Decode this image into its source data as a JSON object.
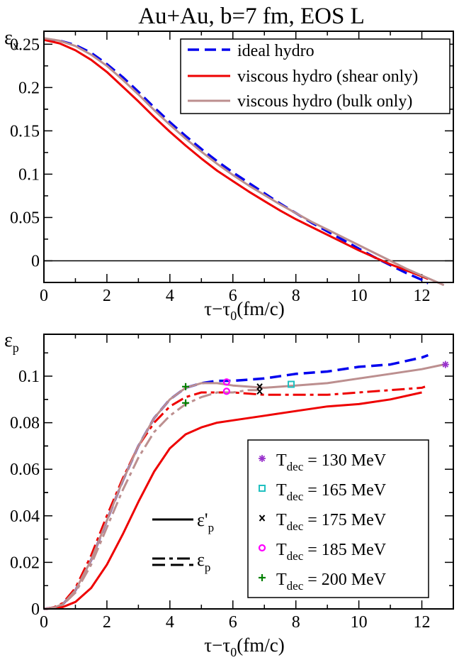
{
  "chart_data": [
    {
      "type": "line",
      "title": "Au+Au, b=7 fm,  EOS L",
      "ylabel_main": "ε",
      "ylabel_sub": "x",
      "xlabel_main": "τ−τ",
      "xlabel_sub": "0",
      "xlabel_unit": "(fm/c)",
      "xlim": [
        0,
        13
      ],
      "ylim": [
        -0.025,
        0.265
      ],
      "xticks": [
        0,
        2,
        4,
        6,
        8,
        10,
        12
      ],
      "yticks": [
        0,
        0.05,
        0.1,
        0.15,
        0.2,
        0.25
      ],
      "ytick_labels": [
        "0",
        "0.05",
        "0.1",
        "0.15",
        "0.2",
        "0.25"
      ],
      "zero_line": true,
      "legend_position": "top-right",
      "series": [
        {
          "name": "ideal hydro",
          "color": "#0000ee",
          "style": "dashed",
          "points": [
            [
              0,
              0.256
            ],
            [
              0.5,
              0.254
            ],
            [
              1,
              0.249
            ],
            [
              1.5,
              0.24
            ],
            [
              2,
              0.227
            ],
            [
              2.5,
              0.212
            ],
            [
              3,
              0.195
            ],
            [
              3.5,
              0.177
            ],
            [
              4,
              0.16
            ],
            [
              4.5,
              0.144
            ],
            [
              5,
              0.129
            ],
            [
              5.5,
              0.115
            ],
            [
              6,
              0.102
            ],
            [
              6.5,
              0.09
            ],
            [
              7,
              0.078
            ],
            [
              7.5,
              0.066
            ],
            [
              8,
              0.055
            ],
            [
              8.5,
              0.044
            ],
            [
              9,
              0.034
            ],
            [
              9.5,
              0.024
            ],
            [
              10,
              0.014
            ],
            [
              10.5,
              0.004
            ],
            [
              11,
              -0.005
            ],
            [
              11.5,
              -0.014
            ],
            [
              12,
              -0.022
            ],
            [
              12.2,
              -0.026
            ]
          ]
        },
        {
          "name": "viscous hydro (shear only)",
          "color": "#ee0000",
          "style": "solid",
          "points": [
            [
              0,
              0.255
            ],
            [
              0.5,
              0.251
            ],
            [
              1,
              0.243
            ],
            [
              1.5,
              0.232
            ],
            [
              2,
              0.218
            ],
            [
              2.5,
              0.201
            ],
            [
              3,
              0.184
            ],
            [
              3.5,
              0.166
            ],
            [
              4,
              0.149
            ],
            [
              4.5,
              0.133
            ],
            [
              5,
              0.118
            ],
            [
              5.5,
              0.104
            ],
            [
              6,
              0.092
            ],
            [
              6.5,
              0.08
            ],
            [
              7,
              0.069
            ],
            [
              7.5,
              0.058
            ],
            [
              8,
              0.048
            ],
            [
              8.5,
              0.039
            ],
            [
              9,
              0.03
            ],
            [
              9.5,
              0.021
            ],
            [
              10,
              0.012
            ],
            [
              10.5,
              0.004
            ],
            [
              11,
              -0.004
            ],
            [
              11.5,
              -0.011
            ],
            [
              12,
              -0.018
            ],
            [
              12.2,
              -0.021
            ]
          ]
        },
        {
          "name": "viscous hydro (bulk only)",
          "color": "#bc8f8f",
          "style": "solid",
          "points": [
            [
              0,
              0.257
            ],
            [
              0.5,
              0.254
            ],
            [
              1,
              0.248
            ],
            [
              1.5,
              0.238
            ],
            [
              2,
              0.225
            ],
            [
              2.5,
              0.209
            ],
            [
              3,
              0.192
            ],
            [
              3.5,
              0.174
            ],
            [
              4,
              0.157
            ],
            [
              4.5,
              0.141
            ],
            [
              5,
              0.126
            ],
            [
              5.5,
              0.112
            ],
            [
              6,
              0.099
            ],
            [
              6.5,
              0.087
            ],
            [
              7,
              0.076
            ],
            [
              7.5,
              0.065
            ],
            [
              8,
              0.055
            ],
            [
              8.5,
              0.045
            ],
            [
              9,
              0.036
            ],
            [
              9.5,
              0.027
            ],
            [
              10,
              0.018
            ],
            [
              10.5,
              0.009
            ],
            [
              11,
              0.0
            ],
            [
              11.5,
              -0.009
            ],
            [
              12,
              -0.017
            ],
            [
              12.7,
              -0.028
            ]
          ]
        }
      ]
    },
    {
      "type": "line",
      "title": "",
      "ylabel_main": "ε",
      "ylabel_sub": "p",
      "xlabel_main": "τ−τ",
      "xlabel_sub": "0",
      "xlabel_unit": "(fm/c)",
      "xlim": [
        0,
        13
      ],
      "ylim": [
        0,
        0.118
      ],
      "xticks": [
        0,
        2,
        4,
        6,
        8,
        10,
        12
      ],
      "yticks": [
        0,
        0.02,
        0.04,
        0.06,
        0.08,
        0.1
      ],
      "ytick_labels": [
        "0",
        "0.02",
        "0.04",
        "0.06",
        "0.08",
        "0.1"
      ],
      "legend_position": "bottom-right",
      "series": [
        {
          "name": "ideal hydro ε_p",
          "color": "#0000ee",
          "style": "dashed",
          "points": [
            [
              0,
              0
            ],
            [
              0.3,
              0.0005
            ],
            [
              0.6,
              0.002
            ],
            [
              1,
              0.008
            ],
            [
              1.5,
              0.021
            ],
            [
              2,
              0.038
            ],
            [
              2.5,
              0.055
            ],
            [
              3,
              0.07
            ],
            [
              3.5,
              0.082
            ],
            [
              4,
              0.09
            ],
            [
              4.5,
              0.095
            ],
            [
              5,
              0.097
            ],
            [
              5.5,
              0.098
            ],
            [
              6,
              0.098
            ],
            [
              7,
              0.099
            ],
            [
              8,
              0.101
            ],
            [
              9,
              0.102
            ],
            [
              10,
              0.104
            ],
            [
              11,
              0.105
            ],
            [
              12,
              0.108
            ],
            [
              12.2,
              0.109
            ]
          ]
        },
        {
          "name": "shear only ε'_p",
          "color": "#ee0000",
          "style": "solid",
          "points": [
            [
              0,
              0
            ],
            [
              0.3,
              0.0002
            ],
            [
              0.6,
              0.0008
            ],
            [
              1,
              0.003
            ],
            [
              1.5,
              0.009
            ],
            [
              2,
              0.019
            ],
            [
              2.5,
              0.032
            ],
            [
              3,
              0.046
            ],
            [
              3.5,
              0.059
            ],
            [
              4,
              0.069
            ],
            [
              4.5,
              0.075
            ],
            [
              5,
              0.078
            ],
            [
              5.5,
              0.08
            ],
            [
              6,
              0.081
            ],
            [
              7,
              0.083
            ],
            [
              8,
              0.085
            ],
            [
              9,
              0.087
            ],
            [
              10,
              0.088
            ],
            [
              11,
              0.09
            ],
            [
              12,
              0.093
            ]
          ]
        },
        {
          "name": "shear only ε_p",
          "color": "#ee0000",
          "style": "dashdot",
          "points": [
            [
              0,
              0
            ],
            [
              0.3,
              0.0006
            ],
            [
              0.6,
              0.0025
            ],
            [
              1,
              0.009
            ],
            [
              1.5,
              0.023
            ],
            [
              2,
              0.04
            ],
            [
              2.5,
              0.056
            ],
            [
              3,
              0.07
            ],
            [
              3.5,
              0.08
            ],
            [
              4,
              0.087
            ],
            [
              4.5,
              0.091
            ],
            [
              5,
              0.093
            ],
            [
              5.5,
              0.093
            ],
            [
              6,
              0.093
            ],
            [
              7,
              0.092
            ],
            [
              8,
              0.092
            ],
            [
              9,
              0.092
            ],
            [
              10,
              0.093
            ],
            [
              11,
              0.094
            ],
            [
              12,
              0.095
            ],
            [
              12.1,
              0.0955
            ]
          ]
        },
        {
          "name": "bulk only ε'_p",
          "color": "#bc8f8f",
          "style": "solid",
          "points": [
            [
              0,
              0
            ],
            [
              0.3,
              0.0005
            ],
            [
              0.6,
              0.002
            ],
            [
              1,
              0.008
            ],
            [
              1.5,
              0.021
            ],
            [
              2,
              0.038
            ],
            [
              2.5,
              0.055
            ],
            [
              3,
              0.07
            ],
            [
              3.5,
              0.082
            ],
            [
              4,
              0.09
            ],
            [
              4.5,
              0.095
            ],
            [
              5,
              0.097
            ],
            [
              5.5,
              0.097
            ],
            [
              6,
              0.096
            ],
            [
              7,
              0.095
            ],
            [
              8,
              0.096
            ],
            [
              9,
              0.097
            ],
            [
              10,
              0.099
            ],
            [
              11,
              0.101
            ],
            [
              12,
              0.103
            ],
            [
              12.7,
              0.105
            ]
          ]
        },
        {
          "name": "bulk only ε_p",
          "color": "#bc8f8f",
          "style": "dashdot",
          "points": [
            [
              0,
              0
            ],
            [
              0.3,
              0.0005
            ],
            [
              0.6,
              0.0018
            ],
            [
              1,
              0.007
            ],
            [
              1.5,
              0.019
            ],
            [
              2,
              0.035
            ],
            [
              2.5,
              0.051
            ],
            [
              3,
              0.065
            ],
            [
              3.5,
              0.076
            ],
            [
              4,
              0.083
            ],
            [
              4.5,
              0.088
            ],
            [
              5,
              0.091
            ],
            [
              5.5,
              0.093
            ],
            [
              6,
              0.093
            ],
            [
              6.5,
              0.094
            ],
            [
              6.8,
              0.094
            ]
          ]
        }
      ],
      "markers": [
        {
          "symbol": "asterisk",
          "color": "#9932cc",
          "x": 12.75,
          "y": 0.105
        },
        {
          "symbol": "square",
          "color": "#20c0c0",
          "x": 7.85,
          "y": 0.0965
        },
        {
          "symbol": "x",
          "color": "#000000",
          "x": 6.85,
          "y": 0.0955
        },
        {
          "symbol": "x",
          "color": "#000000",
          "x": 6.85,
          "y": 0.0935
        },
        {
          "symbol": "circle",
          "color": "#ff00ff",
          "x": 5.8,
          "y": 0.0975
        },
        {
          "symbol": "circle",
          "color": "#ff00ff",
          "x": 5.8,
          "y": 0.0935
        },
        {
          "symbol": "plus",
          "color": "#008000",
          "x": 4.5,
          "y": 0.0955
        },
        {
          "symbol": "plus",
          "color": "#008000",
          "x": 4.5,
          "y": 0.0885
        }
      ],
      "style_legend": [
        {
          "line": "solid",
          "label_main": "ε'",
          "label_sub": "p"
        },
        {
          "line": "dashdot",
          "label_main": "ε",
          "label_sub": "p"
        }
      ],
      "marker_legend": [
        {
          "symbol": "asterisk",
          "color": "#9932cc",
          "label_sub": "dec",
          "label_rest": " = 130 MeV"
        },
        {
          "symbol": "square",
          "color": "#20c0c0",
          "label_sub": "dec",
          "label_rest": " = 165 MeV"
        },
        {
          "symbol": "x",
          "color": "#000000",
          "label_sub": "dec",
          "label_rest": " = 175 MeV"
        },
        {
          "symbol": "circle",
          "color": "#ff00ff",
          "label_sub": "dec",
          "label_rest": " = 185 MeV"
        },
        {
          "symbol": "plus",
          "color": "#008000",
          "label_sub": "dec",
          "label_rest": " = 200 MeV"
        }
      ],
      "marker_legend_prefix": "T"
    }
  ]
}
